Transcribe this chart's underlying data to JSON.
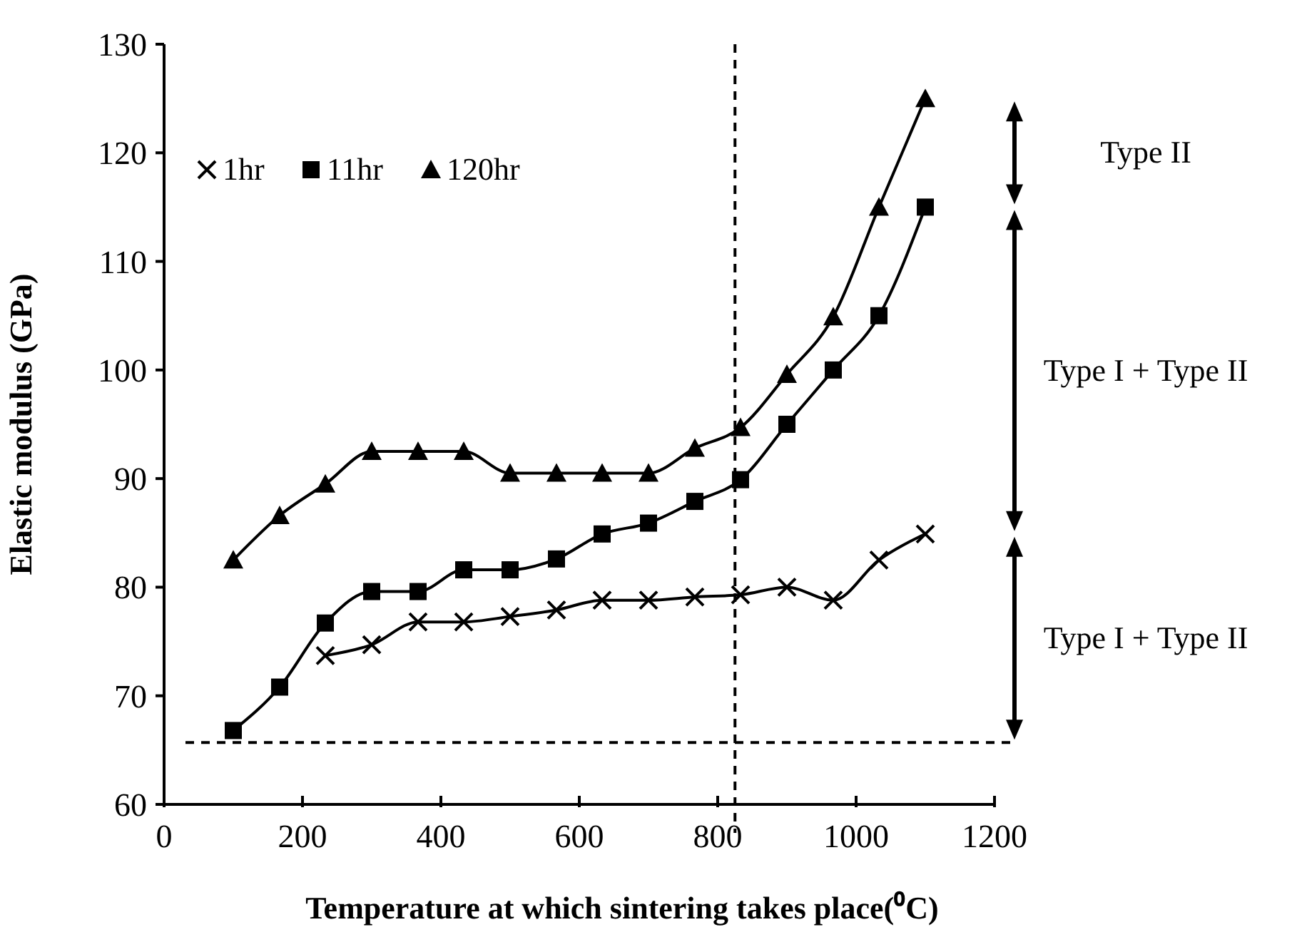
{
  "chart_data": {
    "type": "line",
    "xlabel": "Temperature  at which sintering takes place(⁰C)",
    "ylabel": "Elastic modulus (GPa)",
    "x": [
      100,
      167,
      233,
      300,
      367,
      433,
      500,
      567,
      633,
      700,
      767,
      833,
      900,
      967,
      1033,
      1100
    ],
    "series": [
      {
        "name": "1hr",
        "color": "#000000",
        "marker": "cross",
        "values": [
          null,
          null,
          73.7,
          74.7,
          76.8,
          76.8,
          77.3,
          77.9,
          78.8,
          78.8,
          79.1,
          79.3,
          80,
          78.8,
          82.5,
          84.9
        ]
      },
      {
        "name": "11hr",
        "color": "#000000",
        "marker": "square",
        "values": [
          66.8,
          70.8,
          76.7,
          79.6,
          79.6,
          81.6,
          81.6,
          82.6,
          84.9,
          85.9,
          87.9,
          89.9,
          95,
          100,
          105,
          115
        ]
      },
      {
        "name": "120hr",
        "color": "#000000",
        "marker": "triangle",
        "values": [
          82.5,
          86.6,
          89.5,
          92.5,
          92.5,
          92.5,
          90.5,
          90.5,
          90.5,
          90.5,
          92.8,
          94.7,
          99.6,
          104.9,
          115,
          125
        ]
      }
    ],
    "xlim": [
      0,
      1200
    ],
    "xticks": [
      0,
      200,
      400,
      600,
      800,
      1000,
      1200
    ],
    "ylim": [
      60,
      130
    ],
    "yticks": [
      60,
      70,
      80,
      90,
      100,
      110,
      120,
      130
    ],
    "ref_lines": [
      {
        "axis": "x",
        "value": 825,
        "line_style": "dashed",
        "color": "#000000"
      },
      {
        "axis": "y",
        "value": 65.7,
        "line_style": "dashed",
        "color": "#000000"
      }
    ],
    "annotations": [
      "Type II",
      "Type I + Type II",
      "Type I + Type II"
    ],
    "legend": "top left",
    "grid": false,
    "line_style": "solid"
  }
}
